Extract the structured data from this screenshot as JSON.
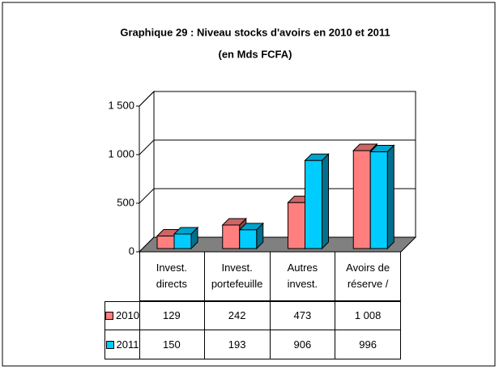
{
  "chart_data": {
    "type": "bar3d",
    "title": "Graphique 29 : Niveau stocks d'avoirs en 2010 et 2011",
    "subtitle": "(en Mds FCFA)",
    "categories": [
      "Invest. directs",
      "Invest. portefeuille",
      "Autres invest.",
      "Avoirs de réserve /"
    ],
    "series": [
      {
        "name": "2010",
        "color": "#ff7f7f",
        "values": [
          129,
          242,
          473,
          1008
        ],
        "value_labels": [
          "129",
          "242",
          "473",
          "1 008"
        ]
      },
      {
        "name": "2011",
        "color": "#00ccff",
        "values": [
          150,
          193,
          906,
          996
        ],
        "value_labels": [
          "150",
          "193",
          "906",
          "996"
        ]
      }
    ],
    "ylim": [
      0,
      1500
    ],
    "yticks": [
      0,
      500,
      {
        "value": 1000,
        "label": "1 000"
      },
      {
        "value": 1500,
        "label": "1 500"
      }
    ],
    "grid": true
  }
}
